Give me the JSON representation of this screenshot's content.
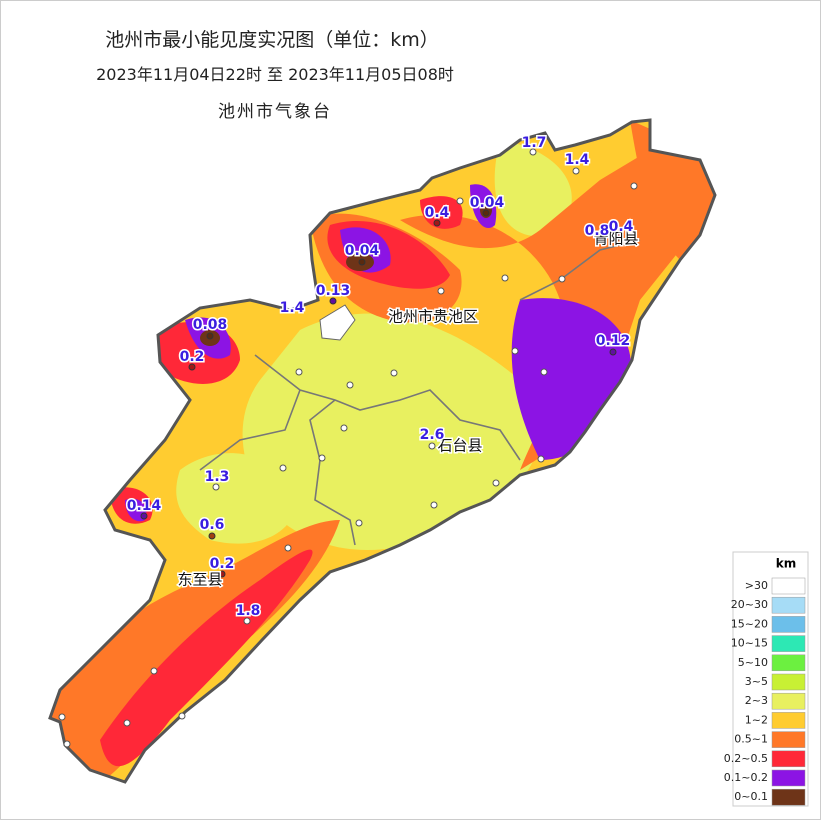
{
  "header": {
    "title": "池州市最小能见度实况图（单位：km）",
    "subtitle": "2023年11月04日22时   至   2023年11月05日08时",
    "agency": "池州市气象台"
  },
  "counties": [
    {
      "name": "池州市贵池区"
    },
    {
      "name": "青阳县"
    },
    {
      "name": "石台县"
    },
    {
      "name": "东至县"
    }
  ],
  "stations": [
    {
      "value": "1.7"
    },
    {
      "value": "1.4"
    },
    {
      "value": "0.4"
    },
    {
      "value": "0.04"
    },
    {
      "value": "0.8"
    },
    {
      "value": "0.4"
    },
    {
      "value": "0.04"
    },
    {
      "value": "0.13"
    },
    {
      "value": "1.4"
    },
    {
      "value": "0.08"
    },
    {
      "value": "0.2"
    },
    {
      "value": "0.12"
    },
    {
      "value": "2.6"
    },
    {
      "value": "1.3"
    },
    {
      "value": "0.14"
    },
    {
      "value": "0.6"
    },
    {
      "value": "0.2"
    },
    {
      "value": "1.8"
    }
  ],
  "legend": {
    "title": "km",
    "items": [
      {
        "label": ">30",
        "color": "#ffffff"
      },
      {
        "label": "20~30",
        "color": "#a6dcf6"
      },
      {
        "label": "15~20",
        "color": "#6cbfea"
      },
      {
        "label": "10~15",
        "color": "#2de8b4"
      },
      {
        "label": "5~10",
        "color": "#6cf040"
      },
      {
        "label": "3~5",
        "color": "#c8f034"
      },
      {
        "label": "2~3",
        "color": "#e8f060"
      },
      {
        "label": "1~2",
        "color": "#ffcc30"
      },
      {
        "label": "0.5~1",
        "color": "#ff7828"
      },
      {
        "label": "0.2~0.5",
        "color": "#ff2838"
      },
      {
        "label": "0.1~0.2",
        "color": "#8c14e4"
      },
      {
        "label": "0~0.1",
        "color": "#6e3418"
      }
    ]
  }
}
